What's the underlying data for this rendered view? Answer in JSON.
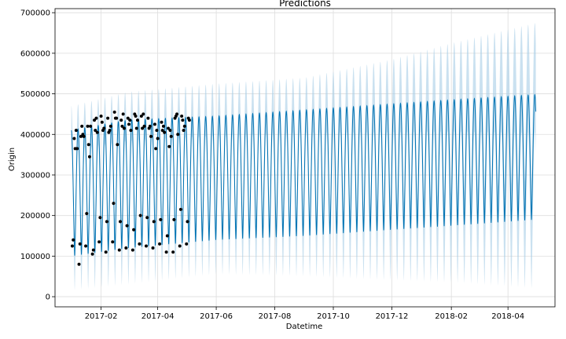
{
  "chart_data": {
    "type": "line",
    "title": "Predictions",
    "xlabel": "Datetime",
    "ylabel": "Origin",
    "x_range": [
      "2016-12-15",
      "2018-05-20"
    ],
    "ylim": [
      -25000,
      710000
    ],
    "grid": true,
    "legend": "none",
    "colors": {
      "forecast": "#0072B2",
      "uncertainty": "#a6cde6",
      "observed": "#000000",
      "grid": "#dddddd",
      "frame": "#000000"
    },
    "x_ticks": [
      "2017-02",
      "2017-04",
      "2017-06",
      "2017-08",
      "2017-10",
      "2017-12",
      "2018-02",
      "2018-04"
    ],
    "y_ticks": [
      0,
      100000,
      200000,
      300000,
      400000,
      500000,
      600000,
      700000
    ],
    "series": [
      {
        "kind": "forecast",
        "start": "2017-01-01",
        "end": "2018-04-30",
        "period_days": 7,
        "trend": [
          {
            "date": "2017-01-01",
            "high": 410000,
            "low": 100000
          },
          {
            "date": "2017-03-01",
            "high": 435000,
            "low": 120000
          },
          {
            "date": "2017-06-01",
            "high": 445000,
            "low": 140000
          },
          {
            "date": "2017-09-01",
            "high": 460000,
            "low": 150000
          },
          {
            "date": "2017-12-01",
            "high": 475000,
            "low": 165000
          },
          {
            "date": "2018-02-01",
            "high": 485000,
            "low": 175000
          },
          {
            "date": "2018-04-30",
            "high": 498000,
            "low": 190000
          }
        ]
      },
      {
        "kind": "uncertainty",
        "trend": [
          {
            "date": "2017-01-01",
            "upper": 470000,
            "lower": 15000
          },
          {
            "date": "2017-03-01",
            "upper": 505000,
            "lower": 30000
          },
          {
            "date": "2017-06-01",
            "upper": 525000,
            "lower": 55000
          },
          {
            "date": "2017-09-01",
            "upper": 540000,
            "lower": 50000
          },
          {
            "date": "2017-12-01",
            "upper": 585000,
            "lower": 40000
          },
          {
            "date": "2018-02-01",
            "upper": 625000,
            "lower": 35000
          },
          {
            "date": "2018-04-30",
            "upper": 675000,
            "lower": 20000
          }
        ]
      },
      {
        "kind": "observed",
        "points": [
          [
            "2017-01-02",
            125000
          ],
          [
            "2017-01-03",
            140000
          ],
          [
            "2017-01-04",
            390000
          ],
          [
            "2017-01-05",
            365000
          ],
          [
            "2017-01-06",
            410000
          ],
          [
            "2017-01-07",
            365000
          ],
          [
            "2017-01-09",
            80000
          ],
          [
            "2017-01-10",
            130000
          ],
          [
            "2017-01-11",
            395000
          ],
          [
            "2017-01-12",
            420000
          ],
          [
            "2017-01-13",
            400000
          ],
          [
            "2017-01-14",
            395000
          ],
          [
            "2017-01-16",
            125000
          ],
          [
            "2017-01-17",
            205000
          ],
          [
            "2017-01-18",
            420000
          ],
          [
            "2017-01-19",
            375000
          ],
          [
            "2017-01-20",
            345000
          ],
          [
            "2017-01-21",
            420000
          ],
          [
            "2017-01-23",
            105000
          ],
          [
            "2017-01-24",
            115000
          ],
          [
            "2017-01-25",
            435000
          ],
          [
            "2017-01-26",
            410000
          ],
          [
            "2017-01-27",
            440000
          ],
          [
            "2017-01-28",
            405000
          ],
          [
            "2017-01-30",
            135000
          ],
          [
            "2017-01-31",
            195000
          ],
          [
            "2017-02-01",
            445000
          ],
          [
            "2017-02-02",
            430000
          ],
          [
            "2017-02-03",
            410000
          ],
          [
            "2017-02-04",
            415000
          ],
          [
            "2017-02-06",
            110000
          ],
          [
            "2017-02-07",
            185000
          ],
          [
            "2017-02-08",
            440000
          ],
          [
            "2017-02-09",
            405000
          ],
          [
            "2017-02-10",
            410000
          ],
          [
            "2017-02-11",
            420000
          ],
          [
            "2017-02-13",
            135000
          ],
          [
            "2017-02-14",
            230000
          ],
          [
            "2017-02-15",
            455000
          ],
          [
            "2017-02-16",
            440000
          ],
          [
            "2017-02-17",
            440000
          ],
          [
            "2017-02-18",
            375000
          ],
          [
            "2017-02-20",
            115000
          ],
          [
            "2017-02-21",
            185000
          ],
          [
            "2017-02-22",
            435000
          ],
          [
            "2017-02-23",
            420000
          ],
          [
            "2017-02-24",
            450000
          ],
          [
            "2017-02-25",
            415000
          ],
          [
            "2017-02-27",
            120000
          ],
          [
            "2017-02-28",
            175000
          ],
          [
            "2017-03-01",
            440000
          ],
          [
            "2017-03-02",
            425000
          ],
          [
            "2017-03-03",
            435000
          ],
          [
            "2017-03-04",
            410000
          ],
          [
            "2017-03-06",
            115000
          ],
          [
            "2017-03-07",
            165000
          ],
          [
            "2017-03-08",
            450000
          ],
          [
            "2017-03-09",
            445000
          ],
          [
            "2017-03-10",
            415000
          ],
          [
            "2017-03-11",
            435000
          ],
          [
            "2017-03-13",
            130000
          ],
          [
            "2017-03-14",
            200000
          ],
          [
            "2017-03-15",
            445000
          ],
          [
            "2017-03-16",
            415000
          ],
          [
            "2017-03-17",
            450000
          ],
          [
            "2017-03-18",
            420000
          ],
          [
            "2017-03-20",
            125000
          ],
          [
            "2017-03-21",
            195000
          ],
          [
            "2017-03-22",
            440000
          ],
          [
            "2017-03-23",
            415000
          ],
          [
            "2017-03-24",
            420000
          ],
          [
            "2017-03-25",
            395000
          ],
          [
            "2017-03-27",
            120000
          ],
          [
            "2017-03-28",
            185000
          ],
          [
            "2017-03-29",
            425000
          ],
          [
            "2017-03-30",
            365000
          ],
          [
            "2017-03-31",
            410000
          ],
          [
            "2017-04-01",
            390000
          ],
          [
            "2017-04-03",
            130000
          ],
          [
            "2017-04-04",
            190000
          ],
          [
            "2017-04-05",
            430000
          ],
          [
            "2017-04-06",
            410000
          ],
          [
            "2017-04-07",
            420000
          ],
          [
            "2017-04-08",
            405000
          ],
          [
            "2017-04-10",
            110000
          ],
          [
            "2017-04-11",
            150000
          ],
          [
            "2017-04-12",
            415000
          ],
          [
            "2017-04-13",
            370000
          ],
          [
            "2017-04-14",
            410000
          ],
          [
            "2017-04-15",
            395000
          ],
          [
            "2017-04-17",
            110000
          ],
          [
            "2017-04-18",
            190000
          ],
          [
            "2017-04-19",
            440000
          ],
          [
            "2017-04-20",
            445000
          ],
          [
            "2017-04-21",
            450000
          ],
          [
            "2017-04-22",
            400000
          ],
          [
            "2017-04-24",
            125000
          ],
          [
            "2017-04-25",
            215000
          ],
          [
            "2017-04-26",
            445000
          ],
          [
            "2017-04-27",
            435000
          ],
          [
            "2017-04-28",
            410000
          ],
          [
            "2017-04-29",
            420000
          ],
          [
            "2017-05-01",
            130000
          ],
          [
            "2017-05-02",
            185000
          ],
          [
            "2017-05-03",
            440000
          ],
          [
            "2017-05-04",
            435000
          ]
        ]
      }
    ]
  }
}
